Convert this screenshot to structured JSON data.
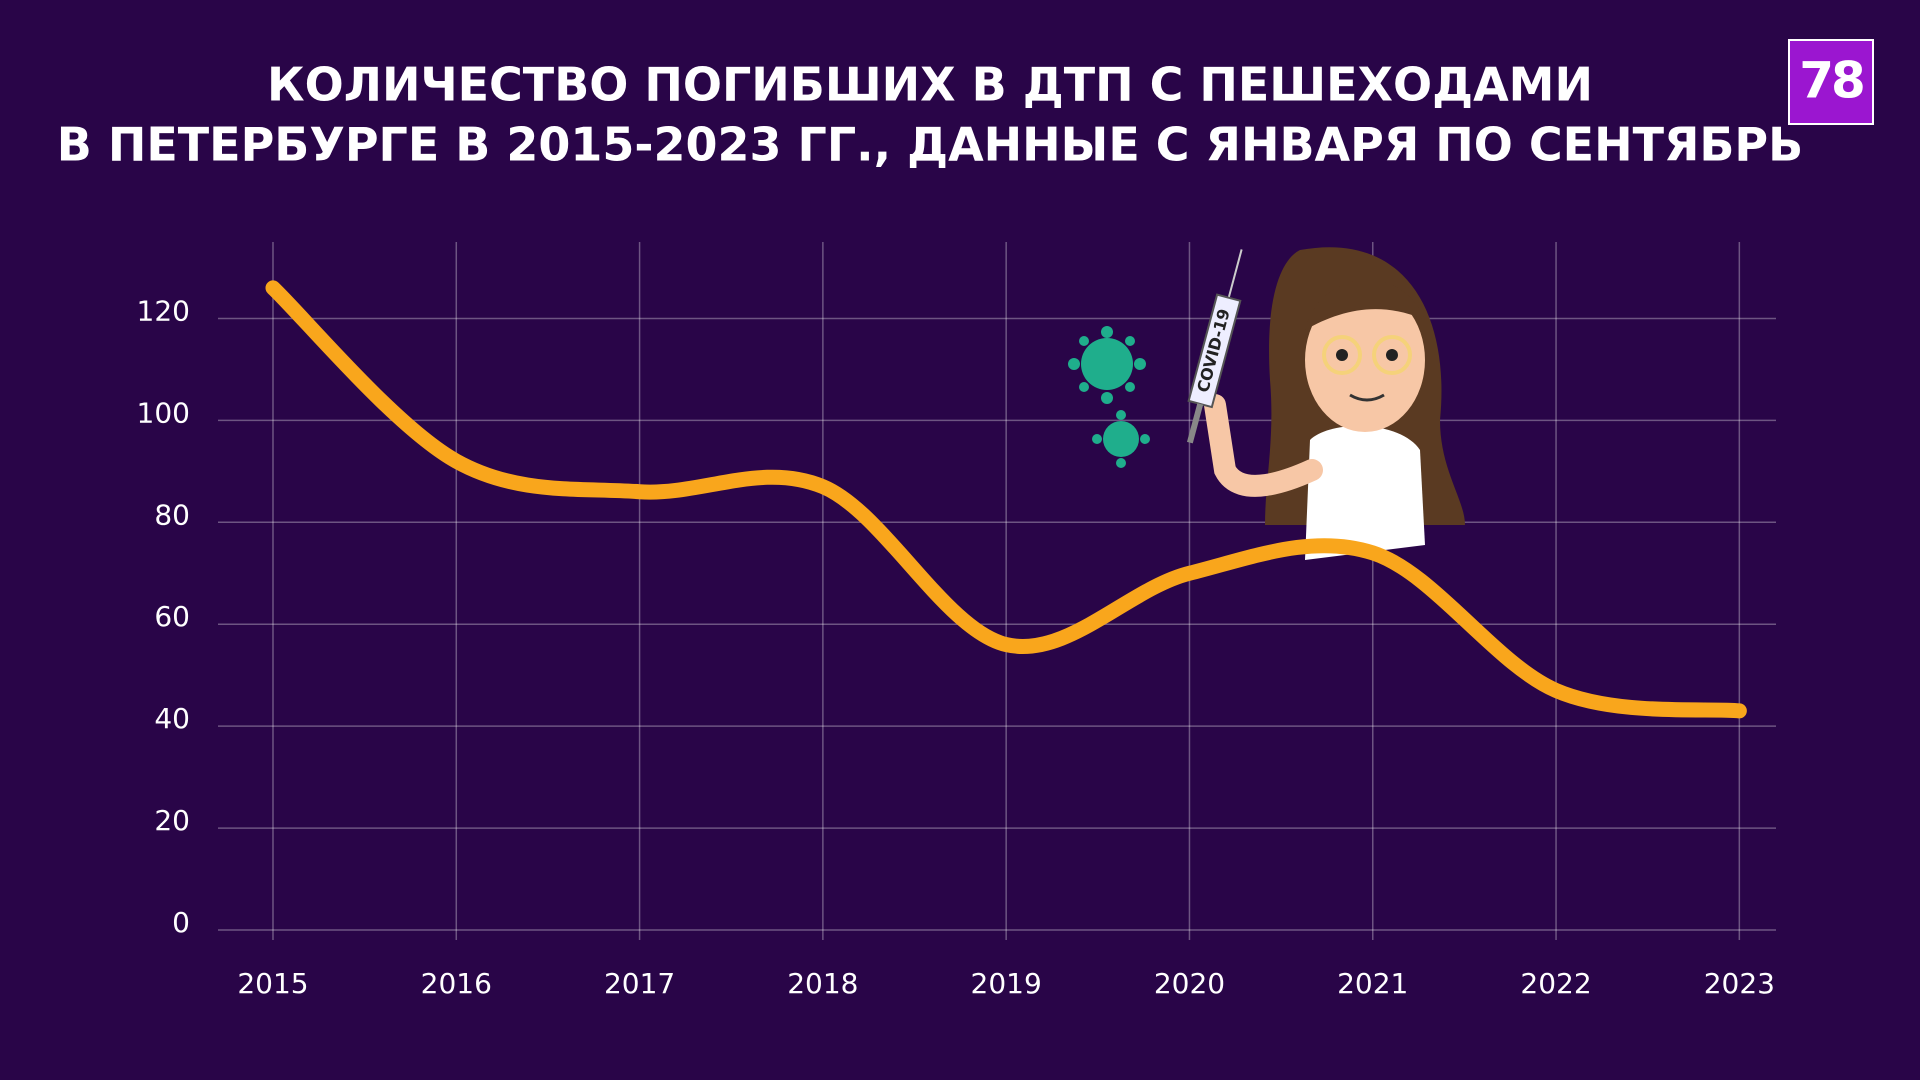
{
  "chart_data": {
    "type": "line",
    "title": [
      "КОЛИЧЕСТВО ПОГИБШИХ В ДТП С ПЕШЕХОДАМИ",
      "В ПЕТЕРБУРГЕ В 2015-2023 ГГ., ДАННЫЕ С ЯНВАРЯ ПО СЕНТЯБРЬ"
    ],
    "logo": "78",
    "illustration_text": "COVID-19",
    "x": [
      2015,
      2016,
      2017,
      2018,
      2019,
      2020,
      2021,
      2022,
      2023
    ],
    "series": [
      {
        "color": "#f9a61c",
        "values": [
          126,
          92,
          86,
          87,
          56,
          70,
          74,
          47,
          43
        ]
      }
    ],
    "xlim": [
      2014.7,
      2023.2
    ],
    "xticks": [
      2015,
      2016,
      2017,
      2018,
      2019,
      2020,
      2021,
      2022,
      2023
    ],
    "ylim": [
      0,
      135
    ],
    "yticks": [
      0,
      20,
      40,
      60,
      80,
      100,
      120
    ],
    "grid": true
  }
}
